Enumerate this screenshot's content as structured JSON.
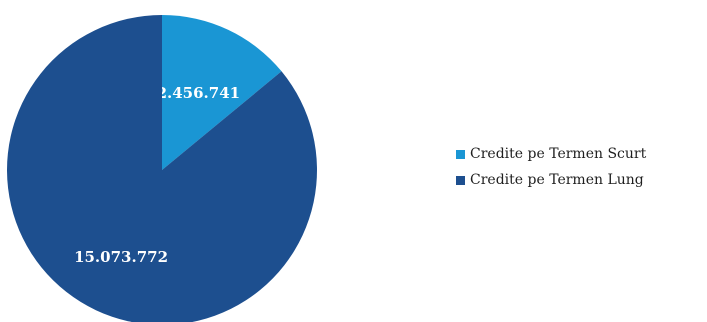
{
  "chart_data": {
    "type": "pie",
    "title": "",
    "slices": [
      {
        "label": "Credite pe Termen Scurt",
        "value": 2456741,
        "display": "2.456.741",
        "color": "#1a96d4"
      },
      {
        "label": "Credite pe Termen Lung",
        "value": 15073772,
        "display": "15.073.772",
        "color": "#1d4f8f"
      }
    ],
    "legend_position": "right"
  }
}
